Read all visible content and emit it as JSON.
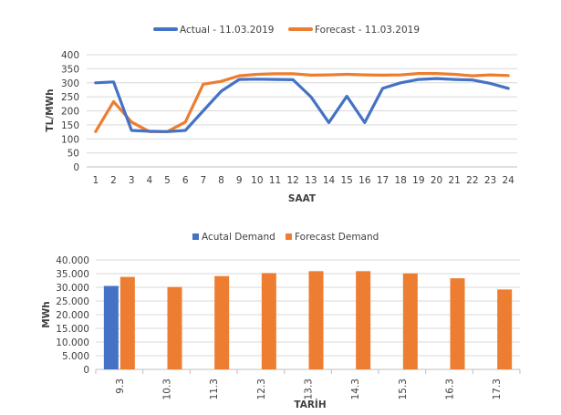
{
  "colors": {
    "actual": "#4472C4",
    "forecast": "#ED7D31",
    "grid": "#D9D9D9",
    "axis": "#BFBFBF",
    "text": "#404040"
  },
  "chart_data": [
    {
      "type": "line",
      "title": "",
      "xlabel": "SAAT",
      "ylabel": "TL/MWh",
      "ylim": [
        0,
        400
      ],
      "yticks": [
        "0",
        "50",
        "100",
        "150",
        "200",
        "250",
        "300",
        "350",
        "400"
      ],
      "grid": true,
      "legend_position": "top",
      "categories": [
        "1",
        "2",
        "3",
        "4",
        "5",
        "6",
        "7",
        "8",
        "9",
        "10",
        "11",
        "12",
        "13",
        "14",
        "15",
        "16",
        "17",
        "18",
        "19",
        "20",
        "21",
        "22",
        "23",
        "24"
      ],
      "series": [
        {
          "name": "Actual - 11.03.2019",
          "values": [
            300,
            303,
            130,
            127,
            126,
            130,
            200,
            270,
            312,
            313,
            312,
            311,
            250,
            158,
            252,
            158,
            280,
            300,
            312,
            315,
            312,
            310,
            298,
            280
          ]
        },
        {
          "name": "Forecast - 11.03.2019",
          "values": [
            126,
            233,
            160,
            126,
            126,
            160,
            295,
            305,
            325,
            330,
            332,
            332,
            327,
            328,
            330,
            328,
            327,
            328,
            333,
            333,
            330,
            325,
            328,
            326
          ]
        }
      ]
    },
    {
      "type": "bar",
      "title": "",
      "xlabel": "TARİH",
      "ylabel": "MWh",
      "ylim": [
        0,
        40000
      ],
      "yticks": [
        "0",
        "5.000",
        "10.000",
        "15.000",
        "20.000",
        "25.000",
        "30.000",
        "35.000",
        "40.000"
      ],
      "grid": true,
      "legend_position": "top",
      "categories": [
        "9.3",
        "10.3",
        "11.3",
        "12.3",
        "13.3",
        "14.3",
        "15.3",
        "16.3",
        "17.3"
      ],
      "series": [
        {
          "name": "Acutal Demand",
          "values": [
            30500,
            null,
            null,
            null,
            null,
            null,
            null,
            null,
            null
          ]
        },
        {
          "name": "Forecast Demand",
          "values": [
            33800,
            30100,
            34100,
            35200,
            35900,
            35900,
            35100,
            33300,
            29200
          ]
        }
      ]
    }
  ]
}
